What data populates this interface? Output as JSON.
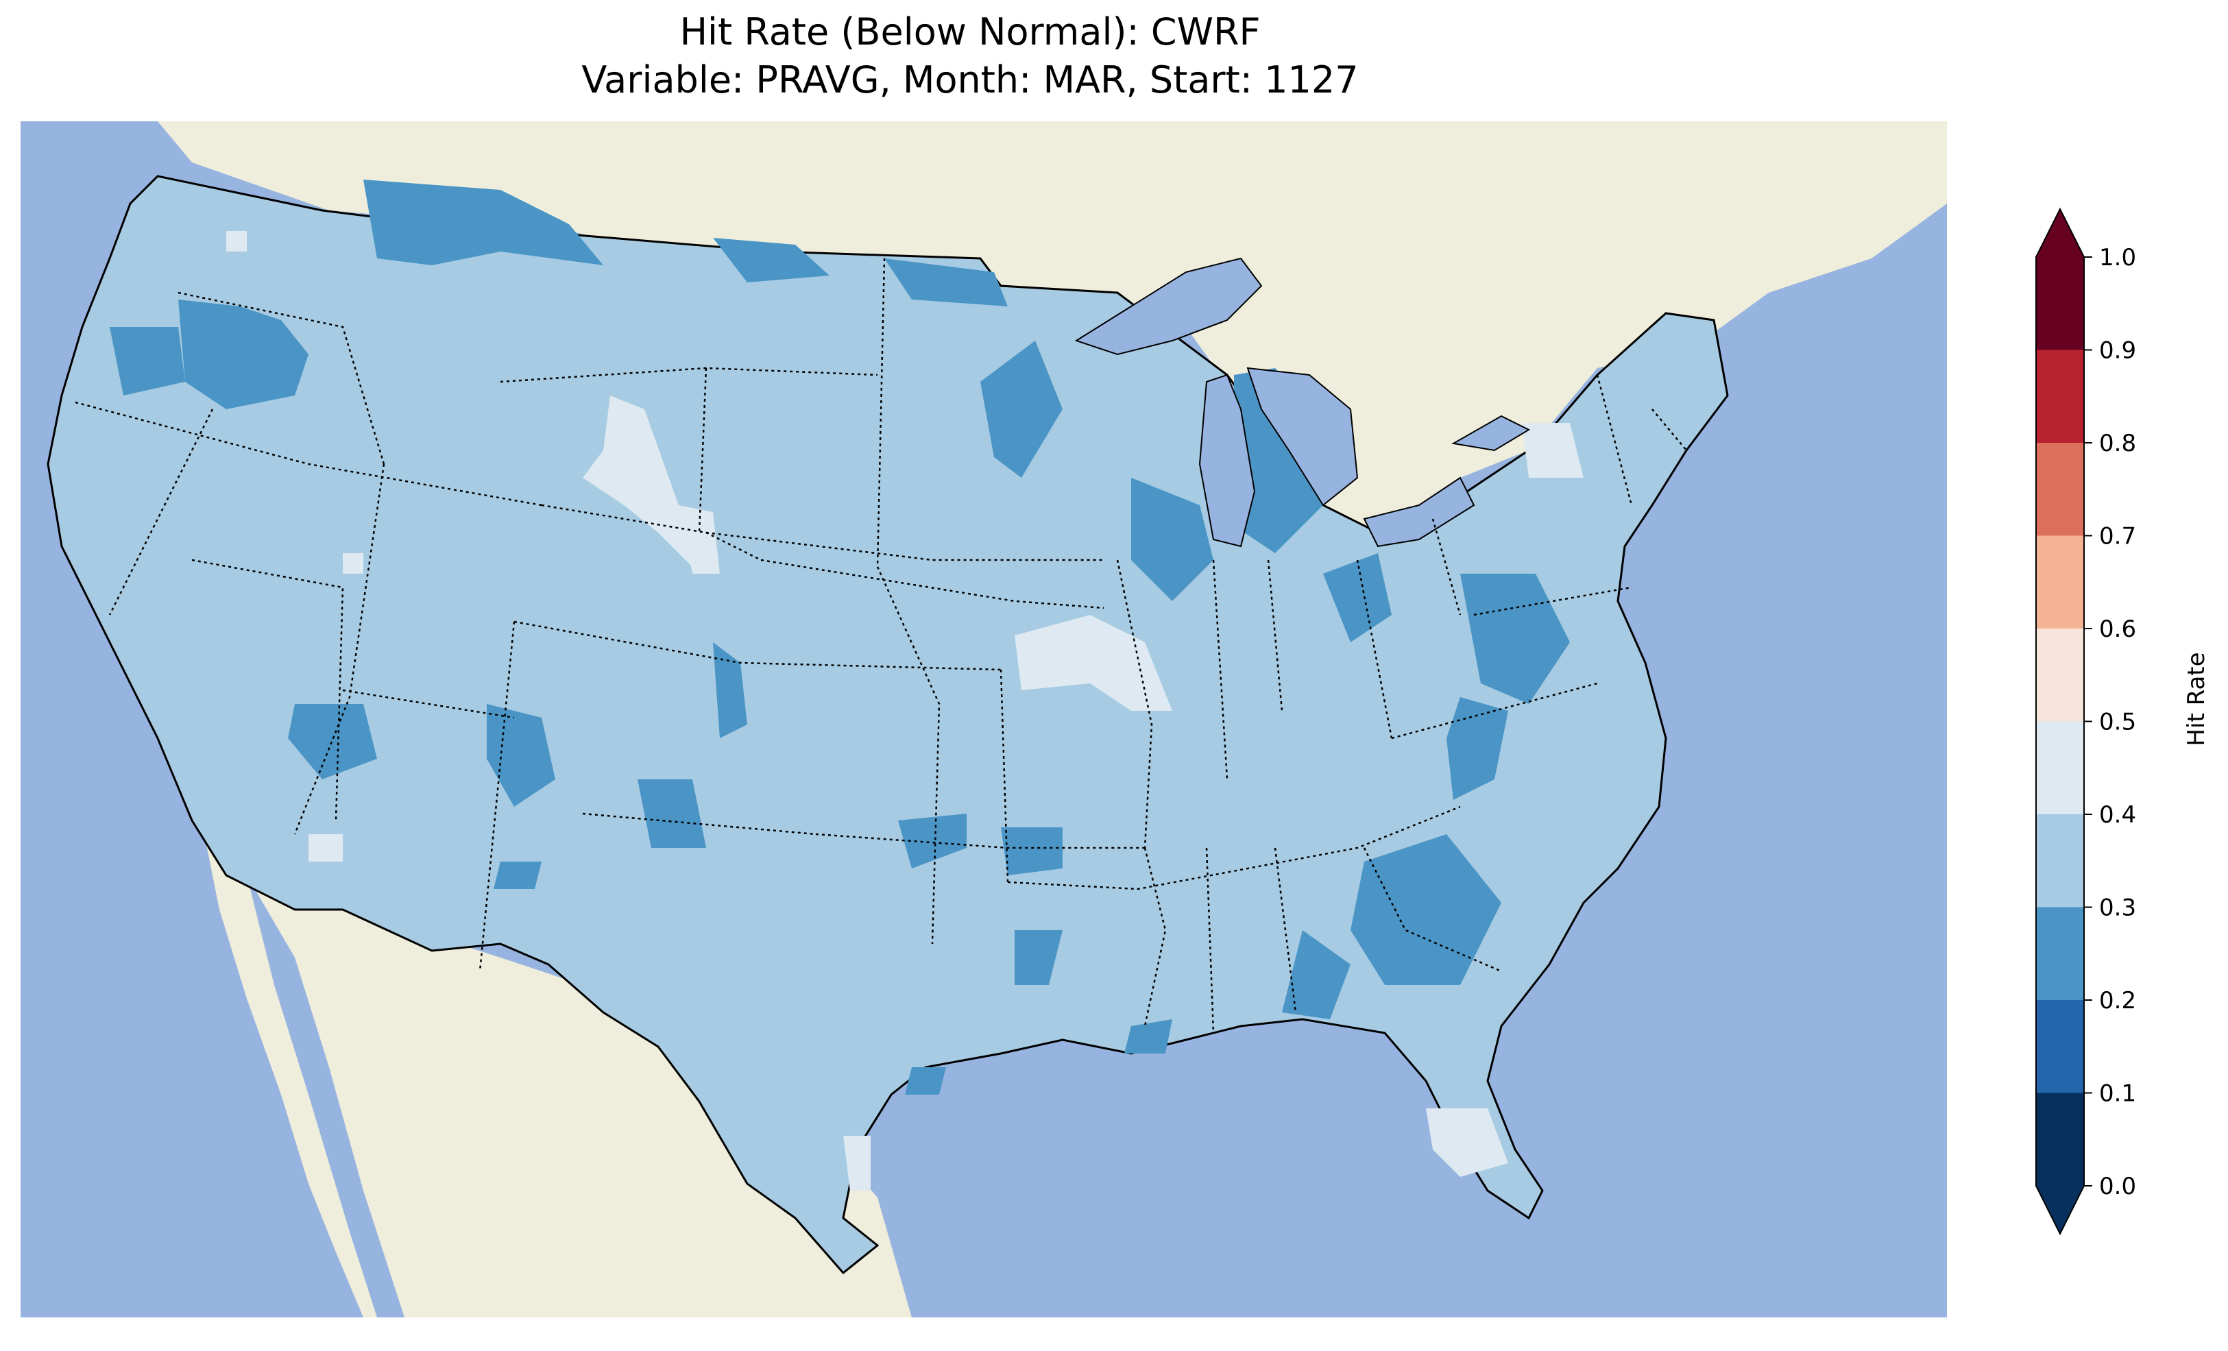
{
  "title": {
    "line1": "Hit Rate (Below Normal): CWRF",
    "line2": "Variable: PRAVG, Month: MAR, Start: 1127"
  },
  "colors": {
    "ocean": "#97b4e0",
    "land": "#efeddb",
    "lakes": "#97b4e0",
    "border": "#000000"
  },
  "colorbar": {
    "label": "Hit Rate",
    "ticks": [
      "0.0",
      "0.1",
      "0.2",
      "0.3",
      "0.4",
      "0.5",
      "0.6",
      "0.7",
      "0.8",
      "0.9",
      "1.0"
    ],
    "bins": [
      {
        "from": 0.0,
        "to": 0.1,
        "color": "#08305f"
      },
      {
        "from": 0.1,
        "to": 0.2,
        "color": "#2466ac"
      },
      {
        "from": 0.2,
        "to": 0.3,
        "color": "#4a95c6"
      },
      {
        "from": 0.3,
        "to": 0.4,
        "color": "#a6cbe2"
      },
      {
        "from": 0.4,
        "to": 0.5,
        "color": "#dee9f1"
      },
      {
        "from": 0.5,
        "to": 0.6,
        "color": "#f8e4da"
      },
      {
        "from": 0.6,
        "to": 0.7,
        "color": "#f4b394"
      },
      {
        "from": 0.7,
        "to": 0.8,
        "color": "#dd705a"
      },
      {
        "from": 0.8,
        "to": 0.9,
        "color": "#b8212f"
      },
      {
        "from": 0.9,
        "to": 1.0,
        "color": "#660122"
      }
    ],
    "extend": "both"
  },
  "map_data": {
    "domain": "Contiguous United States",
    "dominant_class": "0.3-0.4",
    "classes_present": [
      "0.2-0.3",
      "0.3-0.4",
      "0.4-0.5"
    ],
    "lower_patches_0_2_to_0_3": [
      "Idaho / Montana border",
      "Northern Montana",
      "Oregon interior",
      "Minnesota / Wisconsin",
      "Michigan Lower Peninsula",
      "Illinois / Indiana",
      "Ohio",
      "Virginia",
      "Georgia / South Carolina",
      "Arizona / New Mexico",
      "Oklahoma / Arkansas"
    ],
    "higher_patches_0_4_to_0_5": [
      "Wyoming",
      "Missouri / Iowa",
      "Southern Florida",
      "Upstate New York",
      "South Texas"
    ]
  }
}
